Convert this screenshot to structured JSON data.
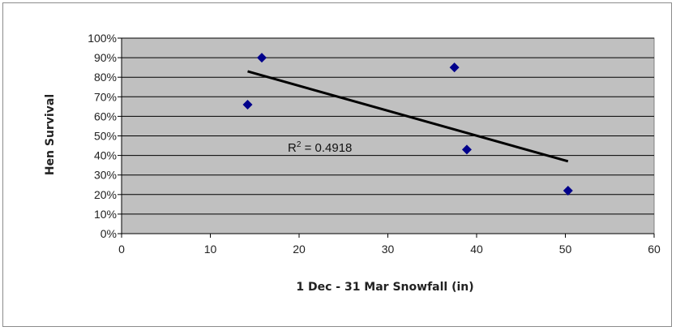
{
  "chart_data": {
    "type": "scatter",
    "title": "",
    "xlabel": "1 Dec - 31 Mar Snowfall (in)",
    "ylabel": "Hen Survival",
    "xlim": [
      0,
      60
    ],
    "ylim": [
      0,
      1.0
    ],
    "x_ticks": [
      0,
      10,
      20,
      30,
      40,
      50,
      60
    ],
    "y_ticks": [
      0,
      0.1,
      0.2,
      0.3,
      0.4,
      0.5,
      0.6,
      0.7,
      0.8,
      0.9,
      1.0
    ],
    "y_tick_labels": [
      "0%",
      "10%",
      "20%",
      "30%",
      "40%",
      "50%",
      "60%",
      "70%",
      "80%",
      "90%",
      "100%"
    ],
    "grid": "horizontal",
    "plot_background": "#c0c0c0",
    "marker_color": "#00008b",
    "trendline_color": "#000000",
    "series": [
      {
        "x": [
          14.2,
          15.8,
          37.5,
          38.9,
          50.3
        ],
        "y": [
          0.66,
          0.9,
          0.85,
          0.43,
          0.22
        ]
      }
    ],
    "trendline": {
      "type": "linear",
      "x": [
        14.2,
        50.3
      ],
      "y": [
        0.83,
        0.37
      ]
    },
    "annotations": {
      "r_squared_prefix": "R",
      "r_squared_exp": "2",
      "r_squared_value": " = 0.4918"
    }
  }
}
